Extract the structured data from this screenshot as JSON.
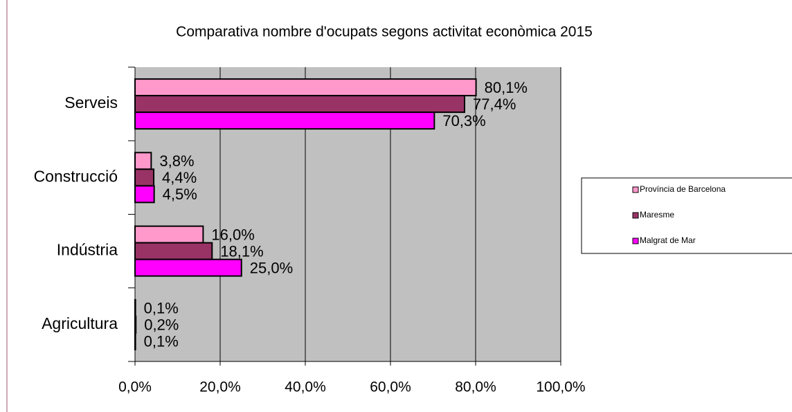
{
  "chart_data": {
    "type": "bar",
    "orientation": "horizontal",
    "title": "Comparativa nombre d'ocupats segons activitat econòmica  2015",
    "categories": [
      "Serveis",
      "Construcció",
      "Indústria",
      "Agricultura"
    ],
    "series": [
      {
        "name": "Província de Barcelona",
        "color": "#ff99cc",
        "values": [
          80.1,
          3.8,
          16.0,
          0.1
        ],
        "value_labels": [
          "80,1%",
          "3,8%",
          "16,0%",
          "0,1%"
        ]
      },
      {
        "name": "Maresme",
        "color": "#993366",
        "values": [
          77.4,
          4.4,
          18.1,
          0.2
        ],
        "value_labels": [
          "77,4%",
          "4,4%",
          "18,1%",
          "0,2%"
        ]
      },
      {
        "name": "Malgrat de Mar",
        "color": "#ff00ff",
        "values": [
          70.3,
          4.5,
          25.0,
          0.1
        ],
        "value_labels": [
          "70,3%",
          "4,5%",
          "25,0%",
          "0,1%"
        ]
      }
    ],
    "xlim": [
      0,
      100
    ],
    "xticks": [
      {
        "value": 0,
        "label": "0,0%"
      },
      {
        "value": 20,
        "label": "20,0%"
      },
      {
        "value": 40,
        "label": "40,0%"
      },
      {
        "value": 60,
        "label": "60,0%"
      },
      {
        "value": 80,
        "label": "80,0%"
      },
      {
        "value": 100,
        "label": "100,0%"
      }
    ],
    "grid": true,
    "legend": "right"
  }
}
